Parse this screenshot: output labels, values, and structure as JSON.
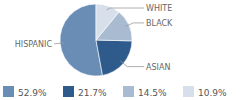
{
  "chart_data": {
    "type": "pie",
    "categories": [
      "HISPANIC",
      "ASIAN",
      "BLACK",
      "WHITE"
    ],
    "values": [
      52.9,
      21.7,
      14.5,
      10.9
    ],
    "value_labels": [
      "52.9%",
      "21.7%",
      "14.5%",
      "10.9%"
    ],
    "colors": [
      "#6a8db5",
      "#2e5b8b",
      "#a8bbd0",
      "#d6dfea"
    ],
    "legend": "bottom"
  }
}
